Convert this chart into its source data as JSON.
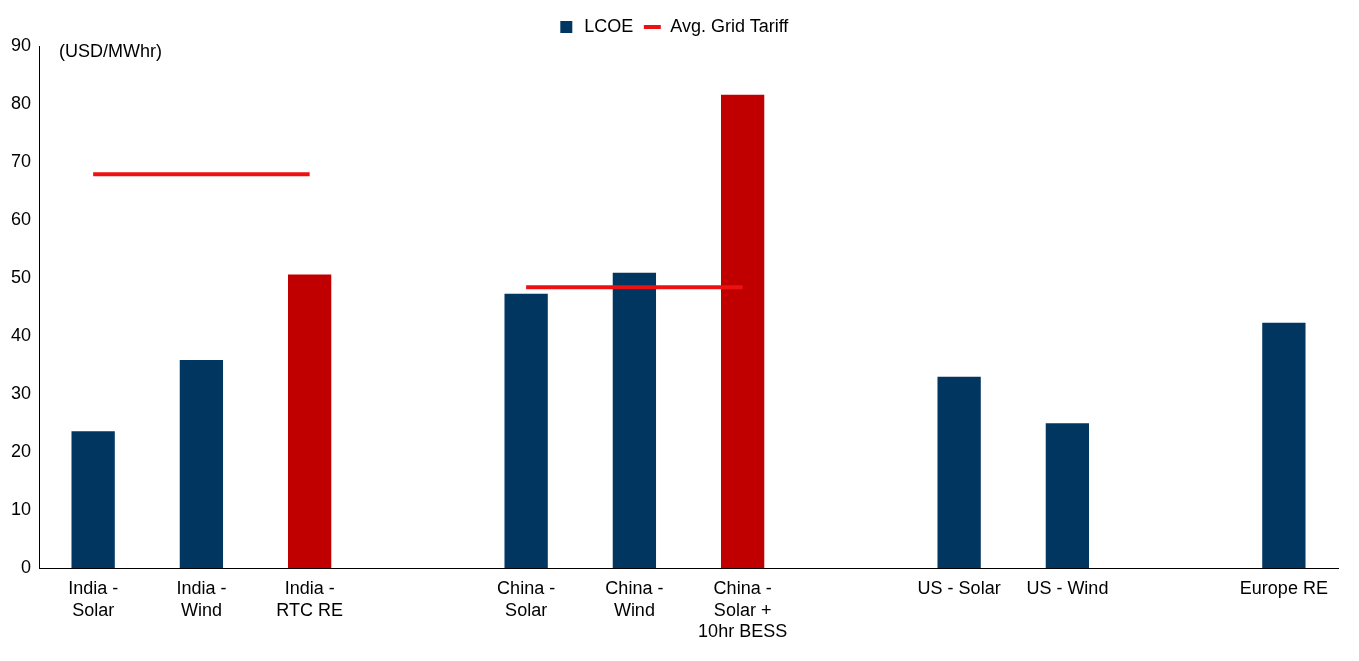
{
  "chart_data": {
    "type": "bar",
    "ylabel": "(USD/MWhr)",
    "categories": [
      "India - Solar",
      "India - Wind",
      "India - RTC RE",
      null,
      "China - Solar",
      "China - Wind",
      "China - Solar + 10hr BESS",
      null,
      "US - Solar",
      "US - Wind",
      null,
      "Europe RE"
    ],
    "series": [
      {
        "name": "LCOE",
        "color": "#003660",
        "colors": [
          "#003660",
          "#003660",
          "#c00000",
          null,
          "#003660",
          "#003660",
          "#c00000",
          null,
          "#003660",
          "#003660",
          null,
          "#003660"
        ],
        "values": [
          23.6,
          35.9,
          50.6,
          null,
          47.3,
          50.9,
          81.6,
          null,
          33.0,
          25.0,
          null,
          42.3
        ]
      },
      {
        "name": "Avg. Grid Tariff",
        "type": "line",
        "color": "#ee1111",
        "values": [
          67.9,
          67.9,
          67.9,
          null,
          48.4,
          48.4,
          48.4,
          null,
          null,
          null,
          null,
          null
        ]
      }
    ],
    "ylim": [
      0,
      90
    ],
    "yticks": [
      0,
      10,
      20,
      30,
      40,
      50,
      60,
      70,
      80,
      90
    ],
    "grid": false,
    "legend": "top",
    "marker": "none"
  }
}
